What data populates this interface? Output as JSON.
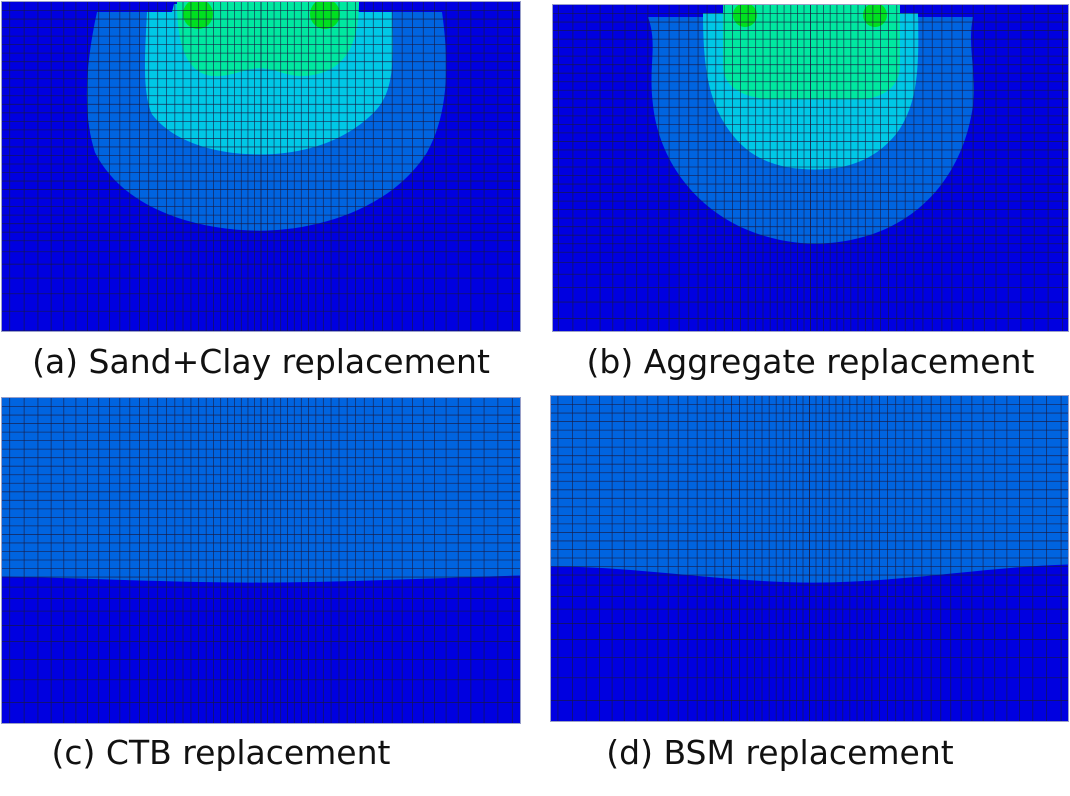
{
  "panels": [
    {
      "id": "a",
      "caption": "(a) Sand+Clay replacement"
    },
    {
      "id": "b",
      "caption": "(b) Aggregate replacement"
    },
    {
      "id": "c",
      "caption": "(c) CTB replacement"
    },
    {
      "id": "d",
      "caption": "(d) BSM replacement"
    }
  ],
  "colors": {
    "level_1": "#0000e0",
    "level_2": "#0064e0",
    "level_3": "#00c8e6",
    "level_4": "#00e8a0",
    "level_5": "#00e020",
    "mesh": "#1a1a40"
  }
}
